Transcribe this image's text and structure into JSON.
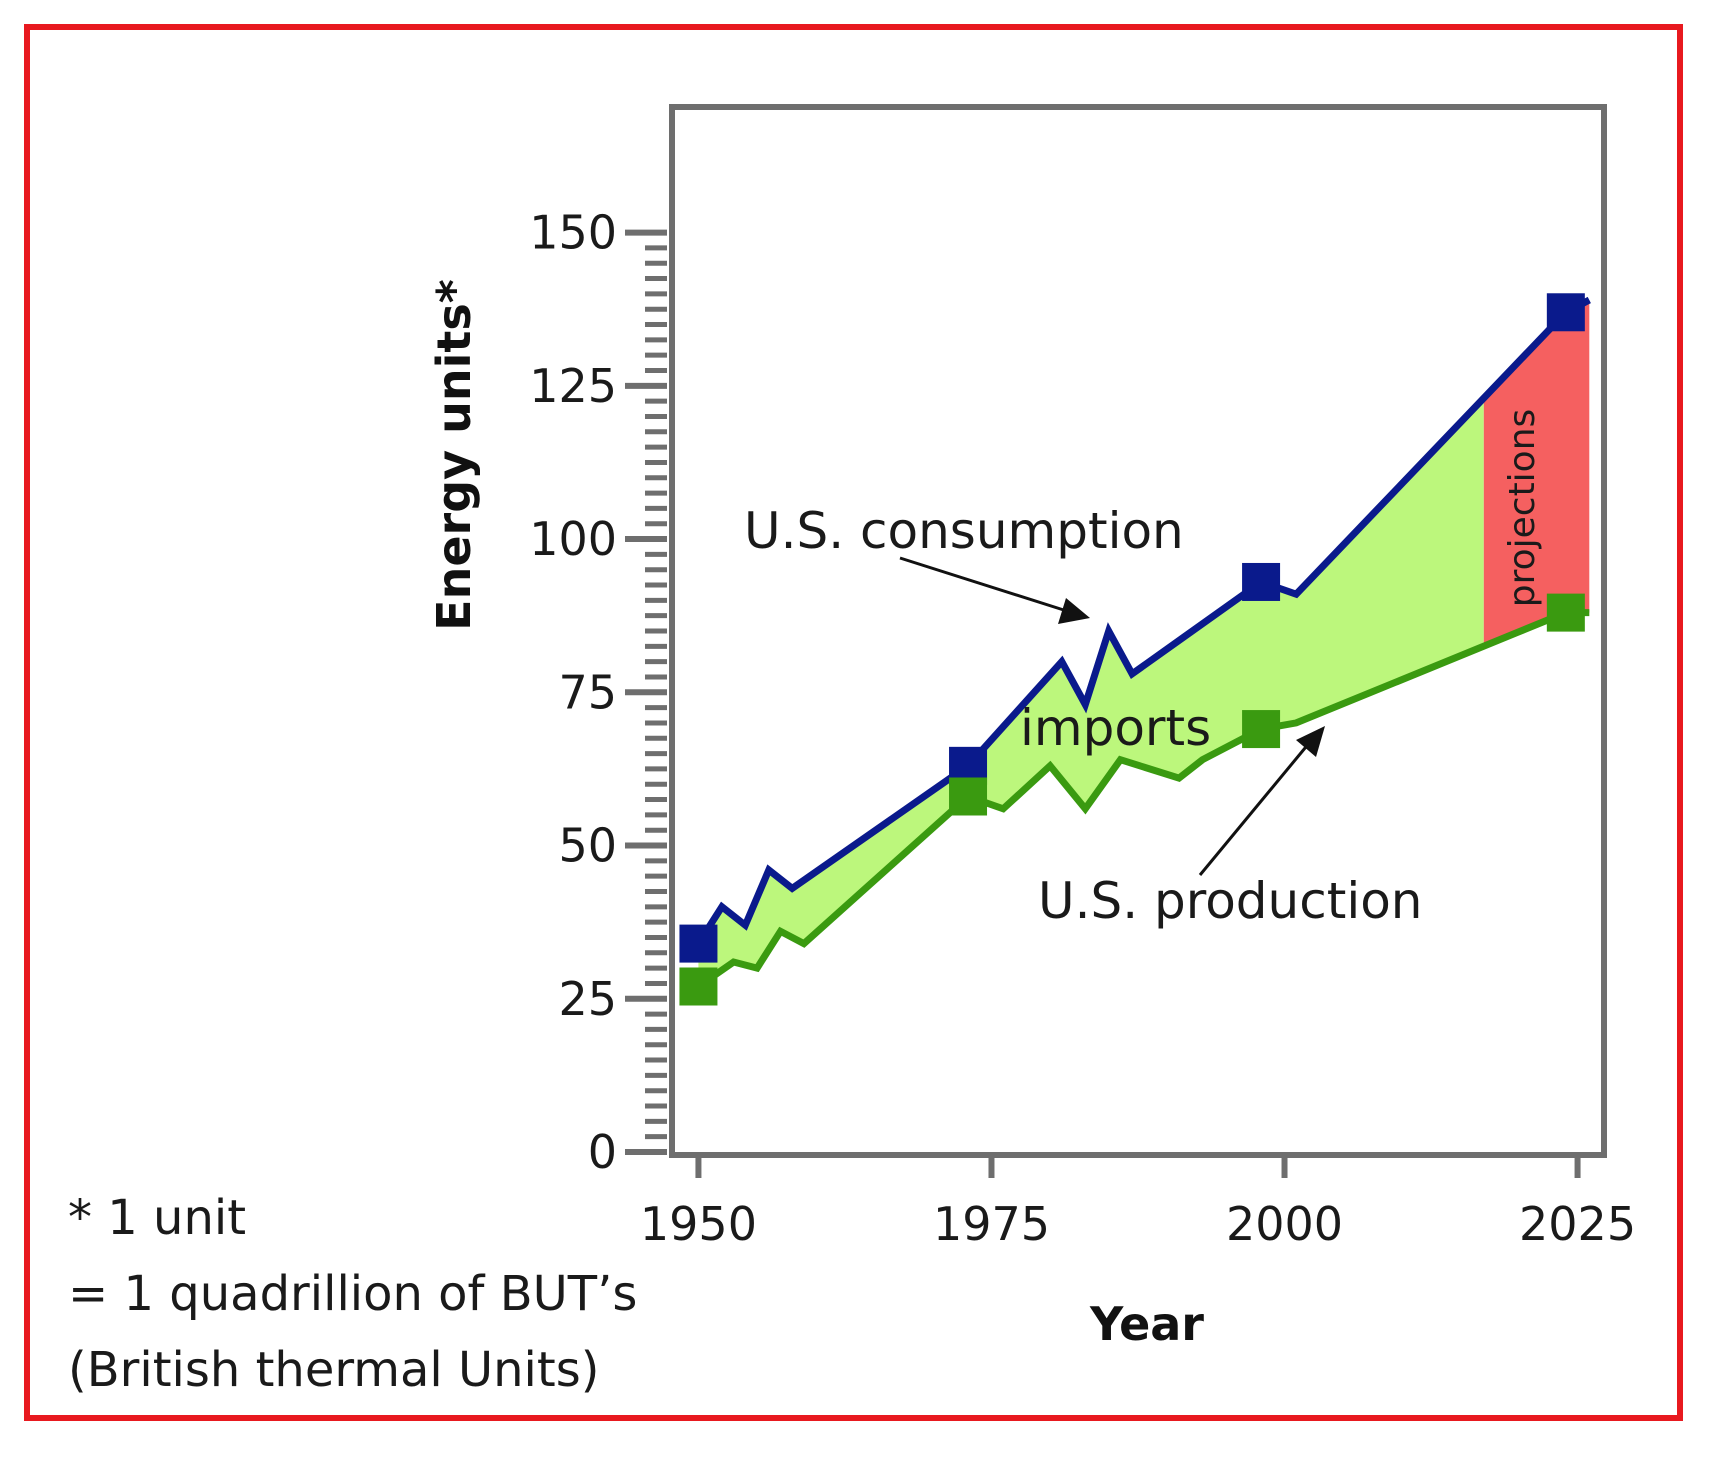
{
  "chart_data": {
    "type": "area",
    "xlabel": "Year",
    "ylabel": "Energy units*",
    "xlim": [
      1948,
      2027
    ],
    "ylim": [
      0,
      170
    ],
    "x_ticks": [
      1950,
      1975,
      2000,
      2025
    ],
    "y_ticks": [
      0,
      25,
      50,
      75,
      100,
      125,
      150
    ],
    "y_minor_step": 2.5,
    "grid": false,
    "projection_start": 2017,
    "series": [
      {
        "name": "U.S. consumption",
        "color": "#0a1a8c",
        "x": [
          1950,
          1952,
          1954,
          1956,
          1958,
          1973,
          1981,
          1983,
          1985,
          1987,
          1998,
          2001,
          2024,
          2026
        ],
        "y": [
          34,
          40,
          37,
          46,
          43,
          63,
          80,
          73,
          85,
          78,
          93,
          91,
          137,
          139
        ],
        "markers": [
          [
            1950,
            34
          ],
          [
            1973,
            63
          ],
          [
            1998,
            93
          ],
          [
            2024,
            137
          ]
        ]
      },
      {
        "name": "U.S. production",
        "color": "#3a9a10",
        "x": [
          1950,
          1953,
          1955,
          1957,
          1959,
          1973,
          1976,
          1980,
          1983,
          1986,
          1991,
          1993,
          1998,
          2001,
          2024,
          2026
        ],
        "y": [
          27,
          31,
          30,
          36,
          34,
          58,
          56,
          63,
          56,
          64,
          61,
          64,
          69,
          70,
          88,
          88
        ],
        "markers": [
          [
            1950,
            27
          ],
          [
            1973,
            58
          ],
          [
            1998,
            69
          ],
          [
            2024,
            88
          ]
        ]
      }
    ],
    "fills": {
      "imports_color": "#bcf77c",
      "projections_color": "#f56060"
    },
    "annotations": {
      "consumption": "U.S. consumption",
      "imports": "imports",
      "production": "U.S. production",
      "projections": "projections"
    }
  },
  "footnote": {
    "line1": "* 1 unit",
    "line2": "= 1 quadrillion of BUT’s",
    "line3": "(British thermal Units)"
  }
}
